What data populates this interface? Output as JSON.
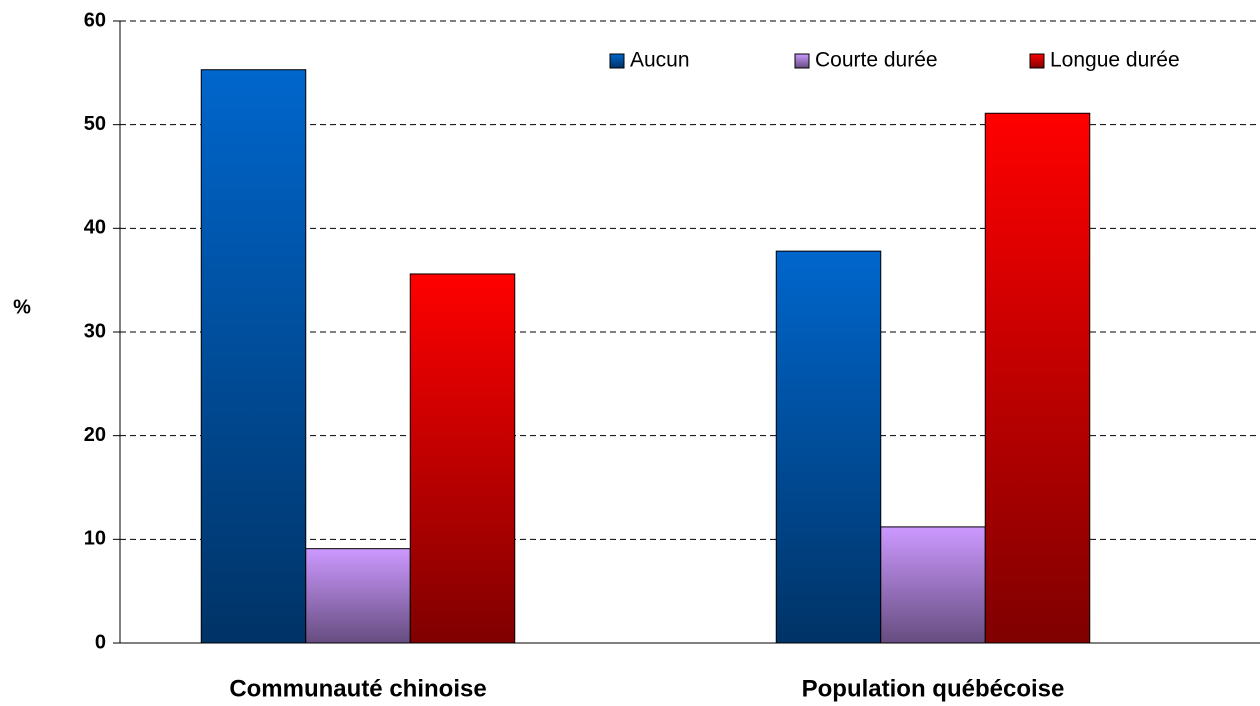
{
  "chart_data": {
    "type": "bar",
    "ylabel": "%",
    "categories": [
      "Communauté chinoise",
      "Population québécoise"
    ],
    "series": [
      {
        "name": "Aucun",
        "color": "#0066cc",
        "values": [
          55.3,
          37.8
        ]
      },
      {
        "name": "Courte durée",
        "color": "#cc99ff",
        "values": [
          9.1,
          11.2
        ]
      },
      {
        "name": "Longue durée",
        "color": "#ff0000",
        "values": [
          35.6,
          51.1
        ]
      }
    ],
    "ylim": [
      0,
      60
    ],
    "yticks": [
      0,
      10,
      20,
      30,
      40,
      50,
      60
    ],
    "grid": true,
    "legend": "top-right"
  }
}
